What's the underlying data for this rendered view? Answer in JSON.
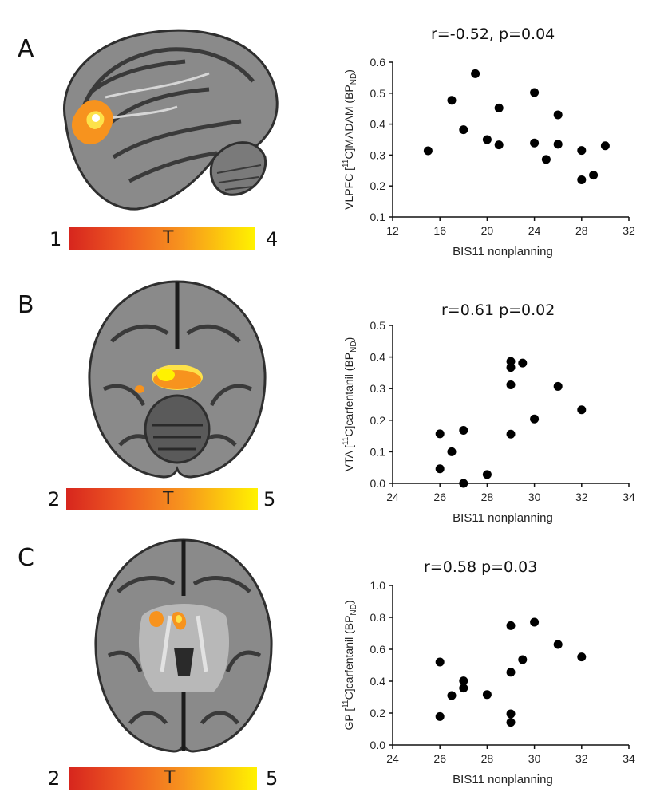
{
  "panels": [
    {
      "letter": "A",
      "colorbar": {
        "min": "1",
        "max": "4",
        "label": "T"
      },
      "stat": "r=-0.52, p=0.04",
      "chart_data": {
        "type": "scatter",
        "xlabel": "BIS11 nonplanning",
        "ylabel_pre": "VLPFC [",
        "ylabel_sup": "11",
        "ylabel_mid": "C]MADAM (BP",
        "ylabel_sub": "ND",
        "ylabel_post": ")",
        "xlim": [
          12,
          32
        ],
        "ylim": [
          0.1,
          0.6
        ],
        "xticks": [
          "12",
          "16",
          "20",
          "24",
          "28",
          "32"
        ],
        "yticks": [
          "0.1",
          "0.2",
          "0.3",
          "0.4",
          "0.5",
          "0.6"
        ],
        "points": [
          {
            "x": 15,
            "y": 0.314
          },
          {
            "x": 17,
            "y": 0.477
          },
          {
            "x": 18,
            "y": 0.382
          },
          {
            "x": 19,
            "y": 0.563
          },
          {
            "x": 20,
            "y": 0.35
          },
          {
            "x": 21,
            "y": 0.452
          },
          {
            "x": 21,
            "y": 0.333
          },
          {
            "x": 24,
            "y": 0.502
          },
          {
            "x": 24,
            "y": 0.339
          },
          {
            "x": 25,
            "y": 0.286
          },
          {
            "x": 26,
            "y": 0.43
          },
          {
            "x": 26,
            "y": 0.335
          },
          {
            "x": 28,
            "y": 0.315
          },
          {
            "x": 28,
            "y": 0.22
          },
          {
            "x": 29,
            "y": 0.235
          },
          {
            "x": 30,
            "y": 0.33
          }
        ]
      }
    },
    {
      "letter": "B",
      "colorbar": {
        "min": "2",
        "max": "5",
        "label": "T"
      },
      "stat": "r=0.61 p=0.02",
      "chart_data": {
        "type": "scatter",
        "xlabel": "BIS11 nonplanning",
        "ylabel_pre": "VTA [",
        "ylabel_sup": "11",
        "ylabel_mid": "C]carfentanil (BP",
        "ylabel_sub": "ND",
        "ylabel_post": ")",
        "xlim": [
          24,
          34
        ],
        "ylim": [
          0.0,
          0.5
        ],
        "xticks": [
          "24",
          "26",
          "28",
          "30",
          "32",
          "34"
        ],
        "yticks": [
          "0.0",
          "0.1",
          "0.2",
          "0.3",
          "0.4",
          "0.5"
        ],
        "points": [
          {
            "x": 26,
            "y": 0.157
          },
          {
            "x": 26,
            "y": 0.046
          },
          {
            "x": 26.5,
            "y": 0.1
          },
          {
            "x": 27,
            "y": 0.168
          },
          {
            "x": 27,
            "y": 0.0
          },
          {
            "x": 28,
            "y": 0.028
          },
          {
            "x": 29,
            "y": 0.386
          },
          {
            "x": 29,
            "y": 0.367
          },
          {
            "x": 29,
            "y": 0.312
          },
          {
            "x": 29,
            "y": 0.156
          },
          {
            "x": 29.5,
            "y": 0.381
          },
          {
            "x": 30,
            "y": 0.204
          },
          {
            "x": 31,
            "y": 0.307
          },
          {
            "x": 32,
            "y": 0.233
          }
        ]
      }
    },
    {
      "letter": "C",
      "colorbar": {
        "min": "2",
        "max": "5",
        "label": "T"
      },
      "stat": "r=0.58 p=0.03",
      "chart_data": {
        "type": "scatter",
        "xlabel": "BIS11 nonplanning",
        "ylabel_pre": "GP [",
        "ylabel_sup": "11",
        "ylabel_mid": "C]carfentanil (BP",
        "ylabel_sub": "ND",
        "ylabel_post": ")",
        "xlim": [
          24,
          34
        ],
        "ylim": [
          0.0,
          1.0
        ],
        "xticks": [
          "24",
          "26",
          "28",
          "30",
          "32",
          "34"
        ],
        "yticks": [
          "0.0",
          "0.2",
          "0.4",
          "0.6",
          "0.8",
          "1.0"
        ],
        "points": [
          {
            "x": 26,
            "y": 0.52
          },
          {
            "x": 26,
            "y": 0.178
          },
          {
            "x": 26.5,
            "y": 0.31
          },
          {
            "x": 27,
            "y": 0.402
          },
          {
            "x": 27,
            "y": 0.357
          },
          {
            "x": 28,
            "y": 0.316
          },
          {
            "x": 29,
            "y": 0.748
          },
          {
            "x": 29,
            "y": 0.456
          },
          {
            "x": 29,
            "y": 0.195
          },
          {
            "x": 29,
            "y": 0.142
          },
          {
            "x": 29.5,
            "y": 0.535
          },
          {
            "x": 30,
            "y": 0.77
          },
          {
            "x": 31,
            "y": 0.63
          },
          {
            "x": 32,
            "y": 0.552
          }
        ]
      }
    }
  ]
}
